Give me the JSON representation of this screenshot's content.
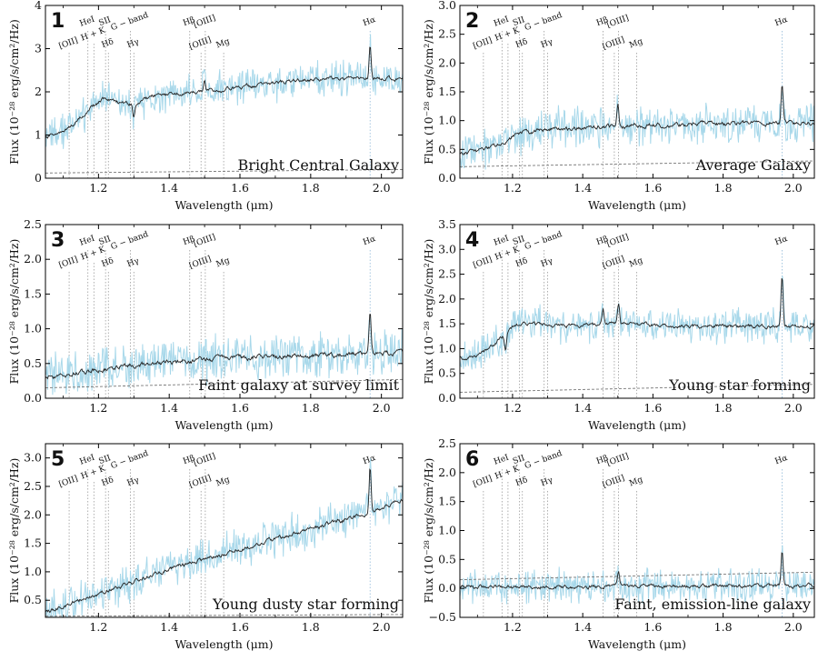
{
  "chart_data": [
    {
      "panel": "1",
      "type": "line",
      "caption": "Bright Central Galaxy",
      "xlabel": "Wavelength (μm)",
      "ylabel": "Flux (10⁻²⁸ erg/s/cm²/Hz)",
      "xlim": [
        1.05,
        2.06
      ],
      "ylim": [
        0,
        4
      ],
      "xticks": [
        "1.2",
        "1.4",
        "1.6",
        "1.8",
        "2.0"
      ],
      "yticks": [
        "0",
        "1",
        "2",
        "3",
        "4"
      ],
      "continuum_x": [
        1.05,
        1.1,
        1.15,
        1.18,
        1.22,
        1.26,
        1.3,
        1.35,
        1.45,
        1.6,
        1.8,
        2.06
      ],
      "continuum_y": [
        0.95,
        1.05,
        1.4,
        1.65,
        1.85,
        1.75,
        1.7,
        1.9,
        2.0,
        2.1,
        2.3,
        2.3
      ],
      "noise": 0.35,
      "features": [
        {
          "x": 1.968,
          "height": 0.8
        },
        {
          "x": 1.5,
          "height": 0.25
        },
        {
          "x": 1.3,
          "height": -0.3
        }
      ],
      "background_line": {
        "x": [
          1.05,
          2.06
        ],
        "y": [
          0.12,
          0.2
        ]
      },
      "lines": [
        {
          "label": "[OII]",
          "x": 1.117,
          "row": 2
        },
        {
          "label": "HeI",
          "x": 1.17,
          "row": 0
        },
        {
          "label": "H + K",
          "x": 1.187,
          "row": 1
        },
        {
          "label": "SII",
          "x": 1.22,
          "row": 0
        },
        {
          "label": "Hδ",
          "x": 1.228,
          "row": 2
        },
        {
          "label": "G − band",
          "x": 1.29,
          "row": 0
        },
        {
          "label": "Hγ",
          "x": 1.3,
          "row": 2
        },
        {
          "label": "Hβ",
          "x": 1.458,
          "row": 0
        },
        {
          "label": "[OIII]",
          "x": 1.49,
          "row": 2
        },
        {
          "label": "[OIII]",
          "x": 1.502,
          "row": 0
        },
        {
          "label": "Mg",
          "x": 1.554,
          "row": 2
        },
        {
          "label": "Hα",
          "x": 1.968,
          "row": 0
        }
      ]
    },
    {
      "panel": "2",
      "type": "line",
      "caption": "Average Galaxy",
      "xlabel": "Wavelength (μm)",
      "ylabel": "Flux (10⁻²⁸ erg/s/cm²/Hz)",
      "xlim": [
        1.05,
        2.06
      ],
      "ylim": [
        0,
        3
      ],
      "xticks": [
        "1.2",
        "1.4",
        "1.6",
        "1.8",
        "2.0"
      ],
      "yticks": [
        "0.0",
        "0.5",
        "1.0",
        "1.5",
        "2.0",
        "2.5",
        "3.0"
      ],
      "continuum_x": [
        1.05,
        1.15,
        1.22,
        1.3,
        1.5,
        1.8,
        2.06
      ],
      "continuum_y": [
        0.4,
        0.55,
        0.78,
        0.85,
        0.9,
        0.95,
        0.95
      ],
      "noise": 0.3,
      "features": [
        {
          "x": 1.968,
          "height": 0.7
        },
        {
          "x": 1.5,
          "height": 0.4
        }
      ],
      "background_line": {
        "x": [
          1.05,
          2.06
        ],
        "y": [
          0.2,
          0.3
        ]
      },
      "lines": [
        {
          "label": "[OII]",
          "x": 1.117,
          "row": 2
        },
        {
          "label": "HeI",
          "x": 1.17,
          "row": 0
        },
        {
          "label": "H + K",
          "x": 1.187,
          "row": 1
        },
        {
          "label": "SII",
          "x": 1.22,
          "row": 0
        },
        {
          "label": "Hδ",
          "x": 1.228,
          "row": 2
        },
        {
          "label": "G − band",
          "x": 1.29,
          "row": 0
        },
        {
          "label": "Hγ",
          "x": 1.3,
          "row": 2
        },
        {
          "label": "Hβ",
          "x": 1.458,
          "row": 0
        },
        {
          "label": "[OIII]",
          "x": 1.49,
          "row": 2
        },
        {
          "label": "[OIII]",
          "x": 1.502,
          "row": 0
        },
        {
          "label": "Mg",
          "x": 1.554,
          "row": 2
        },
        {
          "label": "Hα",
          "x": 1.968,
          "row": 0
        }
      ]
    },
    {
      "panel": "3",
      "type": "line",
      "caption": "Faint galaxy at survey limit",
      "xlabel": "Wavelength (μm)",
      "ylabel": "Flux (10⁻²⁸ erg/s/cm²/Hz)",
      "xlim": [
        1.05,
        2.06
      ],
      "ylim": [
        0,
        2.5
      ],
      "xticks": [
        "1.2",
        "1.4",
        "1.6",
        "1.8",
        "2.0"
      ],
      "yticks": [
        "0.0",
        "0.5",
        "1.0",
        "1.5",
        "2.0",
        "2.5"
      ],
      "continuum_x": [
        1.05,
        1.2,
        1.4,
        1.6,
        1.8,
        2.06
      ],
      "continuum_y": [
        0.3,
        0.42,
        0.52,
        0.58,
        0.62,
        0.65
      ],
      "noise": 0.28,
      "features": [
        {
          "x": 1.968,
          "height": 0.6
        }
      ],
      "background_line": {
        "x": [
          1.05,
          2.06
        ],
        "y": [
          0.15,
          0.27
        ]
      },
      "lines": [
        {
          "label": "[OII]",
          "x": 1.117,
          "row": 2
        },
        {
          "label": "HeI",
          "x": 1.17,
          "row": 0
        },
        {
          "label": "H + K",
          "x": 1.187,
          "row": 1
        },
        {
          "label": "SII",
          "x": 1.22,
          "row": 0
        },
        {
          "label": "Hδ",
          "x": 1.228,
          "row": 2
        },
        {
          "label": "G − band",
          "x": 1.29,
          "row": 0
        },
        {
          "label": "Hγ",
          "x": 1.3,
          "row": 2
        },
        {
          "label": "Hβ",
          "x": 1.458,
          "row": 0
        },
        {
          "label": "[OIII]",
          "x": 1.49,
          "row": 2
        },
        {
          "label": "[OIII]",
          "x": 1.502,
          "row": 0
        },
        {
          "label": "Mg",
          "x": 1.554,
          "row": 2
        },
        {
          "label": "Hα",
          "x": 1.968,
          "row": 0
        }
      ]
    },
    {
      "panel": "4",
      "type": "line",
      "caption": "Young star forming",
      "xlabel": "Wavelength (μm)",
      "ylabel": "Flux (10⁻²⁸ erg/s/cm²/Hz)",
      "xlim": [
        1.05,
        2.06
      ],
      "ylim": [
        0,
        3.5
      ],
      "xticks": [
        "1.2",
        "1.4",
        "1.6",
        "1.8",
        "2.0"
      ],
      "yticks": [
        "0.0",
        "0.5",
        "1.0",
        "1.5",
        "2.0",
        "2.5",
        "3.0",
        "3.5"
      ],
      "continuum_x": [
        1.05,
        1.1,
        1.15,
        1.18,
        1.2,
        1.23,
        1.35,
        1.5,
        1.7,
        2.06
      ],
      "continuum_y": [
        0.8,
        0.85,
        1.1,
        1.3,
        1.45,
        1.5,
        1.45,
        1.5,
        1.45,
        1.45
      ],
      "noise": 0.3,
      "features": [
        {
          "x": 1.968,
          "height": 1.0
        },
        {
          "x": 1.502,
          "height": 0.4
        },
        {
          "x": 1.458,
          "height": 0.3
        },
        {
          "x": 1.18,
          "height": -0.3
        }
      ],
      "background_line": {
        "x": [
          1.05,
          2.06
        ],
        "y": [
          0.12,
          0.28
        ]
      },
      "lines": [
        {
          "label": "[OII]",
          "x": 1.117,
          "row": 2
        },
        {
          "label": "HeI",
          "x": 1.17,
          "row": 0
        },
        {
          "label": "H + K",
          "x": 1.187,
          "row": 1
        },
        {
          "label": "SII",
          "x": 1.22,
          "row": 0
        },
        {
          "label": "Hδ",
          "x": 1.228,
          "row": 2
        },
        {
          "label": "G − band",
          "x": 1.29,
          "row": 0
        },
        {
          "label": "Hγ",
          "x": 1.3,
          "row": 2
        },
        {
          "label": "Hβ",
          "x": 1.458,
          "row": 0
        },
        {
          "label": "[OIII]",
          "x": 1.49,
          "row": 2
        },
        {
          "label": "[OIII]",
          "x": 1.502,
          "row": 0
        },
        {
          "label": "Mg",
          "x": 1.554,
          "row": 2
        },
        {
          "label": "Hα",
          "x": 1.968,
          "row": 0
        }
      ]
    },
    {
      "panel": "5",
      "type": "line",
      "caption": "Young dusty star forming",
      "xlabel": "Wavelength (μm)",
      "ylabel": "Flux (10⁻²⁸ erg/s/cm²/Hz)",
      "xlim": [
        1.05,
        2.06
      ],
      "ylim": [
        0.2,
        3.25
      ],
      "xticks": [
        "1.2",
        "1.4",
        "1.6",
        "1.8",
        "2.0"
      ],
      "yticks": [
        "0.5",
        "1.0",
        "1.5",
        "2.0",
        "2.5",
        "3.0"
      ],
      "continuum_x": [
        1.05,
        1.2,
        1.4,
        1.6,
        1.8,
        1.95,
        2.06
      ],
      "continuum_y": [
        0.3,
        0.6,
        1.05,
        1.4,
        1.75,
        2.0,
        2.25
      ],
      "noise": 0.3,
      "features": [
        {
          "x": 1.968,
          "height": 0.8
        }
      ],
      "background_line": {
        "x": [
          1.05,
          2.06
        ],
        "y": [
          0.22,
          0.25
        ]
      },
      "lines": [
        {
          "label": "[OII]",
          "x": 1.117,
          "row": 2
        },
        {
          "label": "HeI",
          "x": 1.17,
          "row": 0
        },
        {
          "label": "H + K",
          "x": 1.187,
          "row": 1
        },
        {
          "label": "SII",
          "x": 1.22,
          "row": 0
        },
        {
          "label": "Hδ",
          "x": 1.228,
          "row": 2
        },
        {
          "label": "G − band",
          "x": 1.29,
          "row": 0
        },
        {
          "label": "Hγ",
          "x": 1.3,
          "row": 2
        },
        {
          "label": "Hβ",
          "x": 1.458,
          "row": 0
        },
        {
          "label": "[OIII]",
          "x": 1.49,
          "row": 2
        },
        {
          "label": "[OIII]",
          "x": 1.502,
          "row": 0
        },
        {
          "label": "Mg",
          "x": 1.554,
          "row": 2
        },
        {
          "label": "Hα",
          "x": 1.968,
          "row": 0
        }
      ]
    },
    {
      "panel": "6",
      "type": "line",
      "caption": "Faint, emission-line galaxy",
      "xlabel": "Wavelength (μm)",
      "ylabel": "Flux (10⁻²⁸ erg/s/cm²/Hz)",
      "xlim": [
        1.05,
        2.06
      ],
      "ylim": [
        -0.5,
        2.5
      ],
      "xticks": [
        "1.2",
        "1.4",
        "1.6",
        "1.8",
        "2.0"
      ],
      "yticks": [
        "−0.5",
        "0.0",
        "0.5",
        "1.0",
        "1.5",
        "2.0",
        "2.5"
      ],
      "continuum_x": [
        1.05,
        2.06
      ],
      "continuum_y": [
        0.02,
        0.05
      ],
      "noise": 0.25,
      "features": [
        {
          "x": 1.968,
          "height": 0.6
        },
        {
          "x": 1.502,
          "height": 0.25
        }
      ],
      "background_line": {
        "x": [
          1.05,
          2.06
        ],
        "y": [
          0.15,
          0.28
        ]
      },
      "lines": [
        {
          "label": "[OII]",
          "x": 1.117,
          "row": 2
        },
        {
          "label": "HeI",
          "x": 1.17,
          "row": 0
        },
        {
          "label": "H + K",
          "x": 1.187,
          "row": 1
        },
        {
          "label": "SII",
          "x": 1.22,
          "row": 0
        },
        {
          "label": "Hδ",
          "x": 1.228,
          "row": 2
        },
        {
          "label": "G − band",
          "x": 1.29,
          "row": 0
        },
        {
          "label": "Hγ",
          "x": 1.3,
          "row": 2
        },
        {
          "label": "Hβ",
          "x": 1.458,
          "row": 0
        },
        {
          "label": "[OIII]",
          "x": 1.49,
          "row": 2
        },
        {
          "label": "[OIII]",
          "x": 1.502,
          "row": 0
        },
        {
          "label": "Mg",
          "x": 1.554,
          "row": 2
        },
        {
          "label": "Hα",
          "x": 1.968,
          "row": 0
        }
      ]
    }
  ],
  "colors": {
    "raw_spectrum": "#a8d8ea",
    "smoothed_spectrum": "#222222",
    "line_markers": "#9a9a9a",
    "background_line": "#777777",
    "halpha_marker": "#8fb8d8"
  }
}
